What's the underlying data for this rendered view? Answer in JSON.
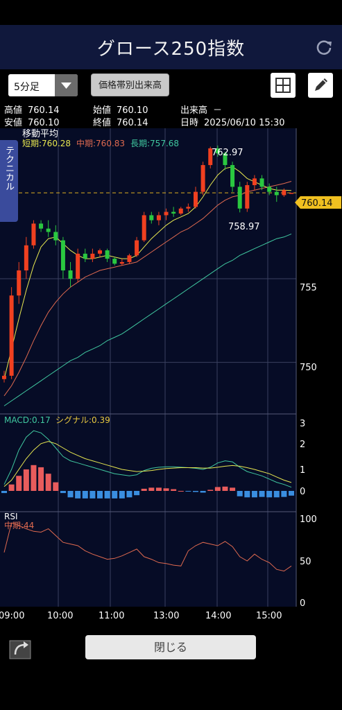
{
  "header": {
    "title": "グロース250指数"
  },
  "toolbar": {
    "interval": "5分足",
    "volume_button": "価格帯別出来高"
  },
  "info": {
    "high_label": "高値",
    "high": "760.14",
    "open_label": "始値",
    "open": "760.10",
    "volume_label": "出来高",
    "volume": "－",
    "low_label": "安値",
    "low": "760.10",
    "close_label": "終値",
    "close": "760.14",
    "datetime_label": "日時",
    "datetime": "2025/06/10 15:30"
  },
  "main_chart": {
    "indicator_title": "移動平均",
    "ma_short": "短期:760.28",
    "ma_mid": "中期:760.83",
    "ma_long": "長期:757.68",
    "high_marker": "762.97",
    "low_marker": "758.97",
    "current_price": "760.14",
    "y_ticks": [
      "755",
      "750"
    ]
  },
  "macd": {
    "label": "MACD:0.17",
    "signal": "シグナル:0.39",
    "ticks": [
      "3",
      "2",
      "1",
      "0"
    ]
  },
  "rsi": {
    "label": "RSI",
    "mid": "中期:44",
    "ticks": [
      "100",
      "50",
      "0"
    ]
  },
  "x_ticks": [
    "09:00",
    "10:00",
    "11:00",
    "13:00",
    "14:00",
    "15:00"
  ],
  "side_tab": "テクニカル",
  "close_button": "閉じる",
  "colors": {
    "up": "#f04020",
    "down": "#2ac840",
    "ma_short": "#e8e850",
    "ma_mid": "#e06a50",
    "ma_long": "#40c8a0",
    "header_bg": "#10183c",
    "price_badge": "#f0c020",
    "hist_pos": "#e85c5c",
    "hist_neg": "#3a8ee0"
  },
  "chart_data": {
    "type": "candlestick",
    "y_range": [
      747,
      764
    ],
    "candles": [
      [
        749.0,
        749.5,
        748.8,
        749.2
      ],
      [
        749.2,
        754.5,
        749.0,
        754.0
      ],
      [
        754.0,
        756.0,
        753.5,
        755.5
      ],
      [
        755.5,
        757.5,
        755.0,
        757.0
      ],
      [
        757.0,
        758.5,
        756.8,
        758.3
      ],
      [
        758.3,
        758.5,
        757.8,
        758.0
      ],
      [
        758.0,
        758.5,
        757.5,
        757.8
      ],
      [
        757.8,
        758.2,
        757.0,
        757.3
      ],
      [
        757.3,
        757.5,
        755.0,
        755.5
      ],
      [
        755.5,
        756.0,
        754.5,
        755.0
      ],
      [
        755.0,
        756.8,
        754.8,
        756.5
      ],
      [
        756.5,
        756.8,
        756.0,
        756.2
      ],
      [
        756.2,
        756.8,
        756.0,
        756.5
      ],
      [
        756.5,
        756.8,
        756.3,
        756.7
      ],
      [
        756.7,
        756.8,
        756.0,
        756.2
      ],
      [
        756.2,
        756.3,
        755.8,
        755.9
      ],
      [
        755.9,
        756.2,
        755.8,
        756.0
      ],
      [
        756.0,
        756.5,
        755.9,
        756.4
      ],
      [
        756.4,
        757.5,
        756.3,
        757.3
      ],
      [
        757.3,
        759.0,
        757.2,
        758.8
      ],
      [
        758.8,
        759.0,
        758.3,
        758.5
      ],
      [
        758.5,
        759.0,
        758.2,
        758.8
      ],
      [
        758.8,
        759.2,
        758.5,
        759.0
      ],
      [
        759.0,
        759.3,
        758.7,
        758.9
      ],
      [
        758.9,
        759.3,
        758.8,
        759.2
      ],
      [
        759.2,
        759.5,
        759.0,
        759.3
      ],
      [
        759.3,
        760.5,
        759.2,
        760.2
      ],
      [
        760.2,
        762.0,
        760.0,
        761.8
      ],
      [
        761.8,
        762.9,
        761.6,
        762.8
      ],
      [
        762.8,
        762.97,
        762.3,
        762.5
      ],
      [
        762.5,
        762.6,
        761.5,
        761.8
      ],
      [
        761.8,
        762.0,
        760.2,
        760.5
      ],
      [
        760.5,
        760.8,
        758.97,
        759.2
      ],
      [
        759.2,
        760.8,
        759.0,
        760.6
      ],
      [
        760.6,
        761.2,
        760.3,
        761.0
      ],
      [
        761.0,
        761.2,
        760.3,
        760.5
      ],
      [
        760.5,
        760.7,
        760.0,
        760.2
      ],
      [
        760.2,
        760.5,
        759.6,
        760.0
      ],
      [
        760.0,
        760.4,
        759.9,
        760.3
      ],
      [
        760.1,
        760.14,
        760.1,
        760.14
      ]
    ],
    "ma_short": [
      749.0,
      750.8,
      752.6,
      754.3,
      755.8,
      756.9,
      757.4,
      757.5,
      757.1,
      756.7,
      756.4,
      756.2,
      756.2,
      756.3,
      756.4,
      756.3,
      756.2,
      756.2,
      756.4,
      756.9,
      757.4,
      757.8,
      758.2,
      758.5,
      758.7,
      758.9,
      759.3,
      759.9,
      760.6,
      761.2,
      761.6,
      761.7,
      761.4,
      761.0,
      760.8,
      760.6,
      760.4,
      760.3,
      760.3,
      760.28
    ],
    "ma_mid": [
      748.0,
      748.6,
      749.4,
      750.3,
      751.3,
      752.2,
      753.0,
      753.6,
      754.1,
      754.5,
      754.8,
      755.1,
      755.3,
      755.5,
      755.6,
      755.7,
      755.8,
      755.9,
      756.0,
      756.3,
      756.6,
      756.9,
      757.2,
      757.5,
      757.8,
      758.0,
      758.3,
      758.6,
      759.0,
      759.4,
      759.7,
      759.9,
      760.0,
      760.2,
      760.3,
      760.4,
      760.5,
      760.6,
      760.7,
      760.83
    ],
    "ma_long": [
      747.4,
      747.7,
      748.0,
      748.3,
      748.6,
      748.9,
      749.2,
      749.5,
      749.8,
      750.1,
      750.3,
      750.6,
      750.8,
      751.0,
      751.3,
      751.5,
      751.7,
      752.0,
      752.3,
      752.6,
      752.9,
      753.2,
      753.5,
      753.8,
      754.1,
      754.4,
      754.7,
      755.0,
      755.3,
      755.6,
      755.9,
      756.1,
      756.4,
      756.6,
      756.8,
      757.0,
      757.2,
      757.4,
      757.5,
      757.68
    ],
    "macd_hist": [
      -0.1,
      0.3,
      0.7,
      1.0,
      1.2,
      1.1,
      0.8,
      0.4,
      -0.1,
      -0.3,
      -0.35,
      -0.35,
      -0.35,
      -0.35,
      -0.35,
      -0.35,
      -0.35,
      -0.3,
      -0.2,
      0.1,
      0.15,
      0.15,
      0.12,
      0.08,
      0.0,
      -0.02,
      -0.05,
      -0.08,
      0.05,
      0.18,
      0.2,
      0.15,
      -0.25,
      -0.3,
      -0.3,
      -0.28,
      -0.3,
      -0.3,
      -0.28,
      -0.22
    ],
    "macd_line": [
      0.3,
      1.0,
      1.9,
      2.5,
      2.8,
      2.7,
      2.4,
      2.0,
      1.6,
      1.4,
      1.3,
      1.2,
      1.1,
      1.0,
      0.9,
      0.8,
      0.75,
      0.7,
      0.75,
      0.95,
      1.05,
      1.1,
      1.12,
      1.12,
      1.1,
      1.08,
      1.05,
      1.0,
      1.1,
      1.3,
      1.4,
      1.35,
      1.1,
      0.9,
      0.8,
      0.7,
      0.55,
      0.4,
      0.3,
      0.17
    ],
    "macd_signal": [
      0.2,
      0.5,
      1.0,
      1.5,
      1.9,
      2.2,
      2.3,
      2.2,
      2.0,
      1.8,
      1.65,
      1.5,
      1.4,
      1.3,
      1.2,
      1.1,
      1.0,
      0.95,
      0.9,
      0.92,
      0.95,
      1.0,
      1.04,
      1.06,
      1.08,
      1.08,
      1.08,
      1.06,
      1.06,
      1.1,
      1.15,
      1.18,
      1.15,
      1.08,
      1.0,
      0.9,
      0.8,
      0.65,
      0.5,
      0.39
    ],
    "rsi": [
      60,
      95,
      92,
      88,
      85,
      84,
      88,
      80,
      72,
      70,
      68,
      62,
      58,
      55,
      52,
      53,
      56,
      60,
      64,
      55,
      52,
      48,
      47,
      45,
      44,
      62,
      68,
      72,
      70,
      68,
      73,
      67,
      55,
      50,
      58,
      52,
      48,
      40,
      38,
      44
    ]
  }
}
